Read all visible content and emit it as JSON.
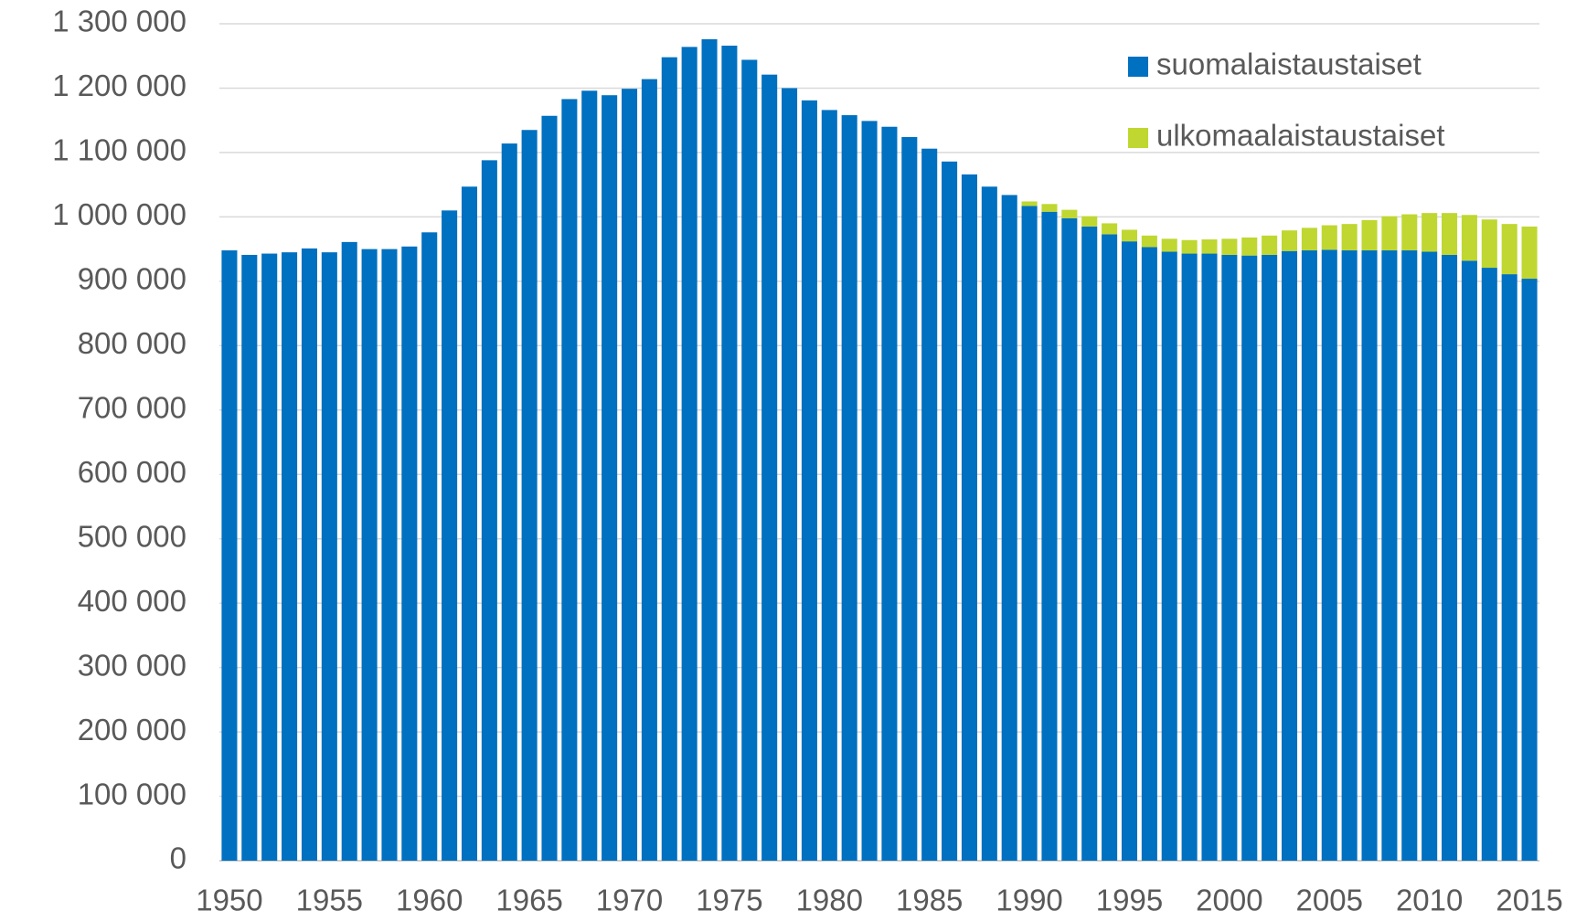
{
  "chart_data": {
    "type": "stacked_bar",
    "categories": [
      "1950",
      null,
      null,
      null,
      null,
      "1955",
      null,
      null,
      null,
      null,
      "1960",
      null,
      null,
      null,
      null,
      "1965",
      null,
      null,
      null,
      null,
      "1970",
      null,
      null,
      null,
      null,
      "1975",
      null,
      null,
      null,
      null,
      "1980",
      null,
      null,
      null,
      null,
      "1985",
      null,
      null,
      null,
      null,
      "1990",
      null,
      null,
      null,
      null,
      "1995",
      null,
      null,
      null,
      null,
      "2000",
      null,
      null,
      null,
      null,
      "2005",
      null,
      null,
      null,
      null,
      "2010",
      null,
      null,
      null,
      null,
      "2015"
    ],
    "series": [
      {
        "name": "suomalaistaustaiset",
        "color": "#0070c0",
        "values": [
          948000,
          941000,
          943000,
          945000,
          951000,
          945000,
          961000,
          950000,
          950000,
          954000,
          976000,
          1010000,
          1047000,
          1088000,
          1114000,
          1135000,
          1157000,
          1183000,
          1196000,
          1189000,
          1199000,
          1214000,
          1248000,
          1264000,
          1276000,
          1266000,
          1244000,
          1221000,
          1200000,
          1181000,
          1166000,
          1158000,
          1149000,
          1140000,
          1124000,
          1106000,
          1086000,
          1066000,
          1047000,
          1034000,
          1017000,
          1008000,
          998000,
          985000,
          973000,
          962000,
          953000,
          946000,
          943000,
          943000,
          941000,
          940000,
          941000,
          947000,
          948000,
          949000,
          948000,
          948000,
          948000,
          948000,
          946000,
          941000,
          932000,
          921000,
          911000,
          904000
        ]
      },
      {
        "name": "ulkomaalaistaustaiset",
        "color": "#bfd730",
        "values": [
          0,
          0,
          0,
          0,
          0,
          0,
          0,
          0,
          0,
          0,
          0,
          0,
          0,
          0,
          0,
          0,
          0,
          0,
          0,
          0,
          0,
          0,
          0,
          0,
          0,
          0,
          0,
          0,
          0,
          0,
          0,
          0,
          0,
          0,
          0,
          0,
          0,
          0,
          0,
          0,
          7000,
          12000,
          13000,
          16000,
          17000,
          18000,
          18000,
          20000,
          21000,
          22000,
          25000,
          28000,
          30000,
          32000,
          35000,
          38000,
          41000,
          47000,
          53000,
          56000,
          60000,
          65000,
          71000,
          75000,
          78000,
          81000
        ]
      }
    ],
    "ylim": [
      0,
      1300000
    ],
    "yticks": [
      0,
      {
        "value": 100000,
        "label": "100 000"
      },
      {
        "value": 200000,
        "label": "200 000"
      },
      {
        "value": 300000,
        "label": "300 000"
      },
      {
        "value": 400000,
        "label": "400 000"
      },
      {
        "value": 500000,
        "label": "500 000"
      },
      {
        "value": 600000,
        "label": "600 000"
      },
      {
        "value": 700000,
        "label": "700 000"
      },
      {
        "value": 800000,
        "label": "800 000"
      },
      {
        "value": 900000,
        "label": "900 000"
      },
      {
        "value": 1000000,
        "label": "1 000 000"
      },
      {
        "value": 1100000,
        "label": "1 100 000"
      },
      {
        "value": 1200000,
        "label": "1 200 000"
      },
      {
        "value": 1300000,
        "label": "1 300 000"
      }
    ],
    "grid": true,
    "legend": "top-right"
  }
}
